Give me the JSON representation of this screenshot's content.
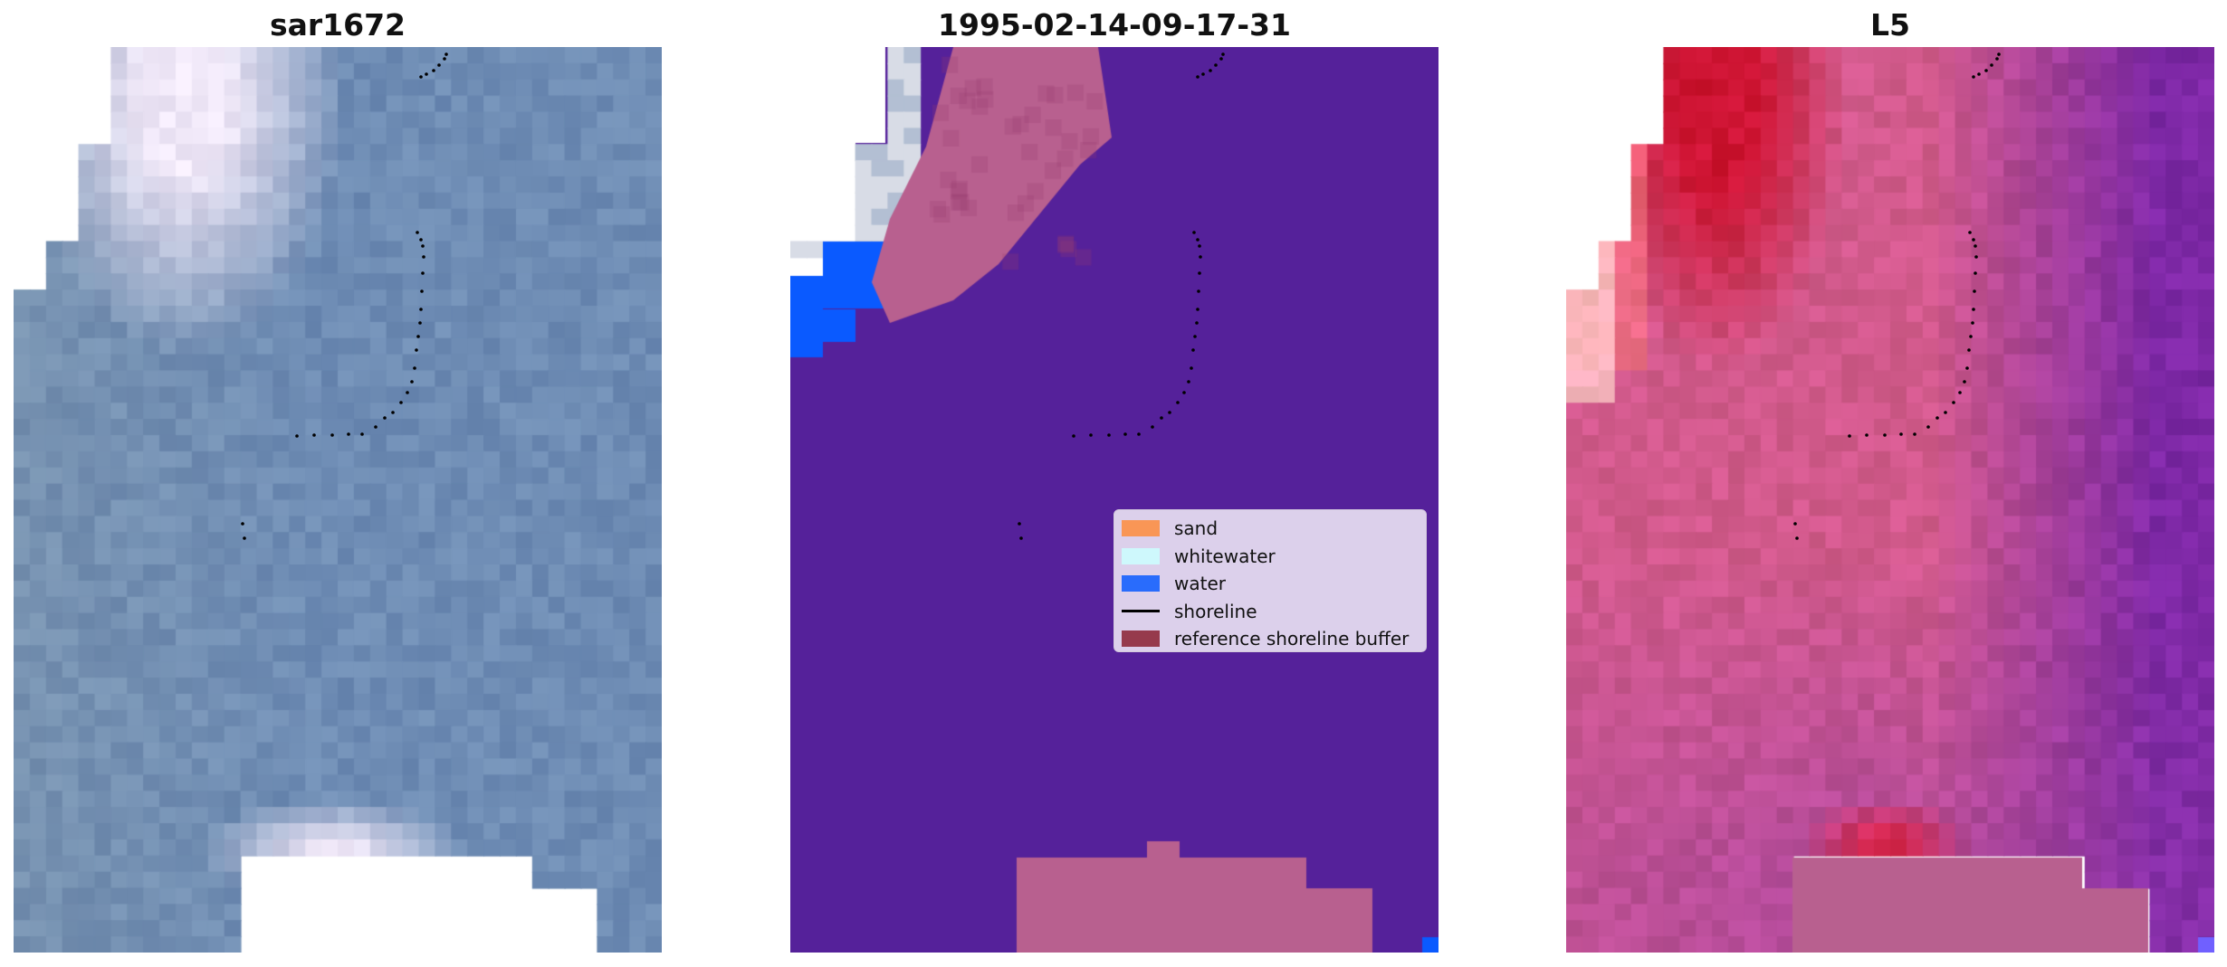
{
  "panels": [
    {
      "title": "sar1672"
    },
    {
      "title": "1995-02-14-09-17-31"
    },
    {
      "title": "L5"
    }
  ],
  "legend": {
    "items": [
      {
        "label": "sand",
        "color": "#ff8c3c",
        "kind": "patch"
      },
      {
        "label": "whitewater",
        "color": "#ccffff",
        "kind": "patch"
      },
      {
        "label": "water",
        "color": "#0a5aff",
        "kind": "patch"
      },
      {
        "label": "shoreline",
        "color": "#000000",
        "kind": "line"
      },
      {
        "label": "reference shoreline buffer",
        "color": "#8b2030",
        "kind": "patch"
      }
    ]
  },
  "colors": {
    "background": "#ffffff",
    "water_class": "#55219a",
    "buffer_overlay": "#b8608f",
    "water_patch": "#0a5aff"
  }
}
